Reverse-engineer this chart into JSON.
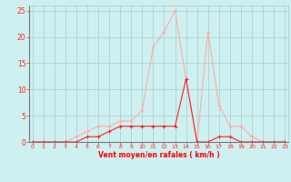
{
  "x": [
    0,
    1,
    2,
    3,
    4,
    5,
    6,
    7,
    8,
    9,
    10,
    11,
    12,
    13,
    14,
    15,
    16,
    17,
    18,
    19,
    20,
    21,
    22,
    23
  ],
  "y_moyen": [
    0,
    0,
    0,
    0,
    0,
    1,
    1,
    2,
    3,
    3,
    3,
    3,
    3,
    3,
    12,
    0,
    0,
    1,
    1,
    0,
    0,
    0,
    0,
    0
  ],
  "y_rafales": [
    0,
    0,
    0,
    0,
    1,
    2,
    3,
    3,
    4,
    4,
    6,
    18,
    21,
    25,
    12,
    0,
    21,
    7,
    3,
    3,
    1,
    0,
    0,
    0
  ],
  "color_moyen": "#ff2222",
  "color_rafales": "#ffaaaa",
  "bg_color": "#cef0f0",
  "grid_color": "#aacccc",
  "xlabel": "Vent moyen/en rafales ( km/h )",
  "xlabel_color": "#ff0000",
  "yticks": [
    0,
    5,
    10,
    15,
    20,
    25
  ],
  "xticks": [
    0,
    1,
    2,
    3,
    4,
    5,
    6,
    7,
    8,
    9,
    10,
    11,
    12,
    13,
    14,
    15,
    16,
    17,
    18,
    19,
    20,
    21,
    22,
    23
  ],
  "ylim": [
    0,
    26
  ],
  "xlim": [
    -0.3,
    23.3
  ]
}
